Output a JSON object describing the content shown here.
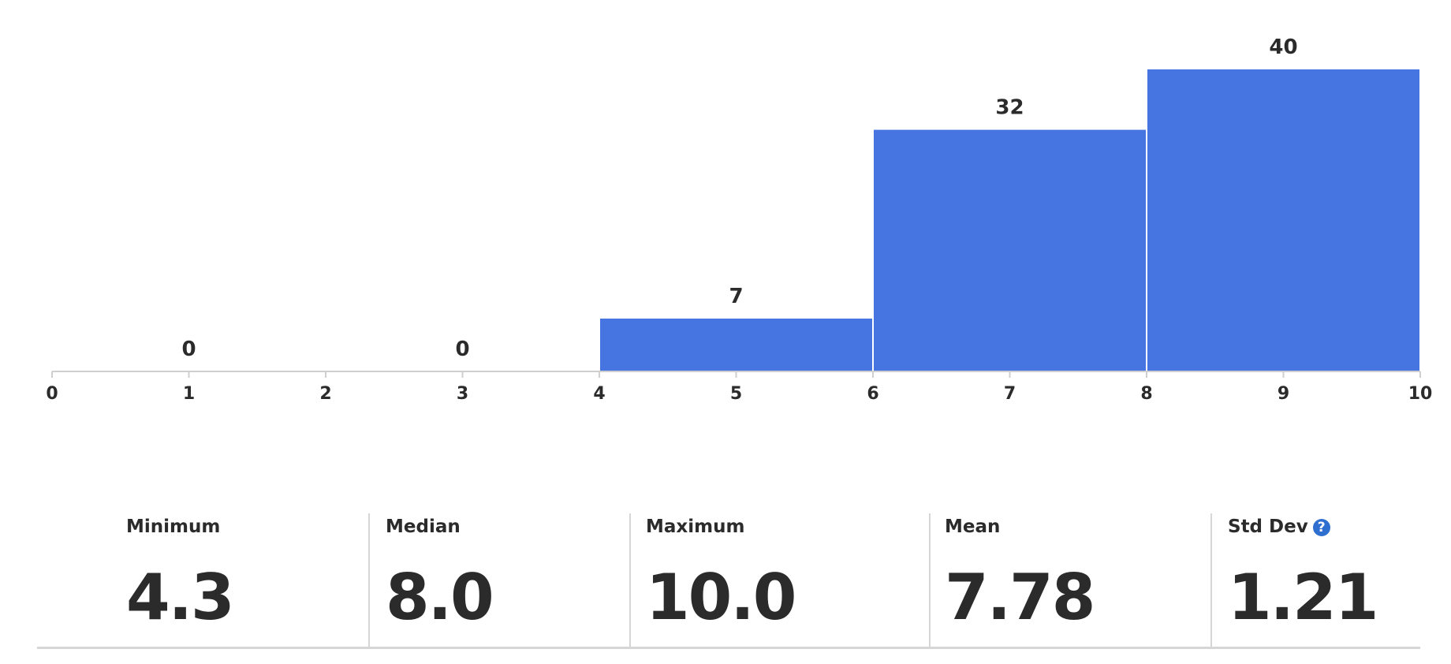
{
  "chart_data": {
    "type": "histogram",
    "bins": [
      0,
      2,
      4,
      6,
      8,
      10
    ],
    "values": [
      0,
      0,
      7,
      32,
      40
    ],
    "color": "#4674e0",
    "xlim": [
      0,
      10
    ],
    "xticks": [
      0,
      1,
      2,
      3,
      4,
      5,
      6,
      7,
      8,
      9,
      10
    ]
  },
  "stats": [
    {
      "label": "Minimum",
      "value": "4.3"
    },
    {
      "label": "Median",
      "value": "8.0"
    },
    {
      "label": "Maximum",
      "value": "10.0"
    },
    {
      "label": "Mean",
      "value": "7.78"
    },
    {
      "label": "Std Dev",
      "value": "1.21"
    }
  ]
}
